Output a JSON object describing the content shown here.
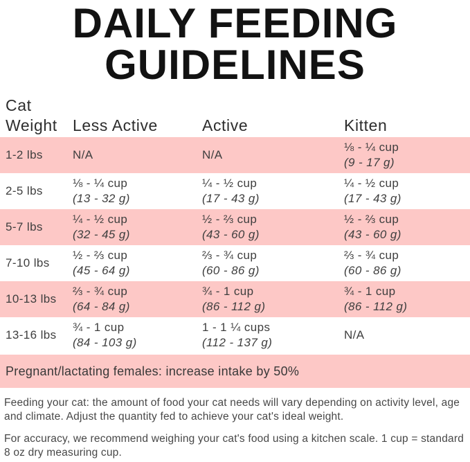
{
  "title": {
    "line1": "DAILY FEEDING",
    "line2": "GUIDELINES"
  },
  "table": {
    "headers": {
      "weight": "Cat Weight",
      "less_active": "Less Active",
      "active": "Active",
      "kitten": "Kitten"
    },
    "rows": [
      {
        "weight": "1-2 lbs",
        "less_active_cups": "N/A",
        "less_active_grams": "",
        "active_cups": "N/A",
        "active_grams": "",
        "kitten_cups": "⅛ - ¼ cup",
        "kitten_grams": "(9 - 17 g)"
      },
      {
        "weight": "2-5 lbs",
        "less_active_cups": "⅛ - ¼ cup",
        "less_active_grams": "(13 - 32 g)",
        "active_cups": "¼ - ½ cup",
        "active_grams": "(17 - 43 g)",
        "kitten_cups": "¼ - ½ cup",
        "kitten_grams": "(17 - 43 g)"
      },
      {
        "weight": "5-7 lbs",
        "less_active_cups": "¼ - ½ cup",
        "less_active_grams": "(32 - 45 g)",
        "active_cups": "½ - ⅔ cup",
        "active_grams": "(43 - 60 g)",
        "kitten_cups": "½ - ⅔ cup",
        "kitten_grams": "(43 - 60 g)"
      },
      {
        "weight": "7-10 lbs",
        "less_active_cups": "½ - ⅔ cup",
        "less_active_grams": "(45 - 64 g)",
        "active_cups": "⅔ - ¾ cup",
        "active_grams": "(60 - 86 g)",
        "kitten_cups": "⅔ - ¾ cup",
        "kitten_grams": "(60 - 86 g)"
      },
      {
        "weight": "10-13 lbs",
        "less_active_cups": "⅔ - ¾ cup",
        "less_active_grams": "(64 - 84 g)",
        "active_cups": "¾ - 1 cup",
        "active_grams": "(86 - 112 g)",
        "kitten_cups": "¾ - 1 cup",
        "kitten_grams": "(86 - 112 g)"
      },
      {
        "weight": "13-16 lbs",
        "less_active_cups": "¾ - 1 cup",
        "less_active_grams": "(84 - 103 g)",
        "active_cups": "1 - 1 ¼ cups",
        "active_grams": "(112 - 137 g)",
        "kitten_cups": "N/A",
        "kitten_grams": ""
      }
    ],
    "note_band": "Pregnant/lactating females: increase intake by 50%"
  },
  "footer": {
    "para1": "Feeding your cat: the amount of food your cat needs will vary depending on activity level, age and climate. Adjust the quantity fed to achieve your cat's ideal weight.",
    "para2": "For accuracy, we recommend weighing your cat's food using a kitchen scale. 1 cup = standard 8 oz dry measuring cup."
  },
  "colors": {
    "row_shade_pink": "#fdc8c6",
    "title_black": "#121212",
    "body_text": "#3e3e3e"
  }
}
